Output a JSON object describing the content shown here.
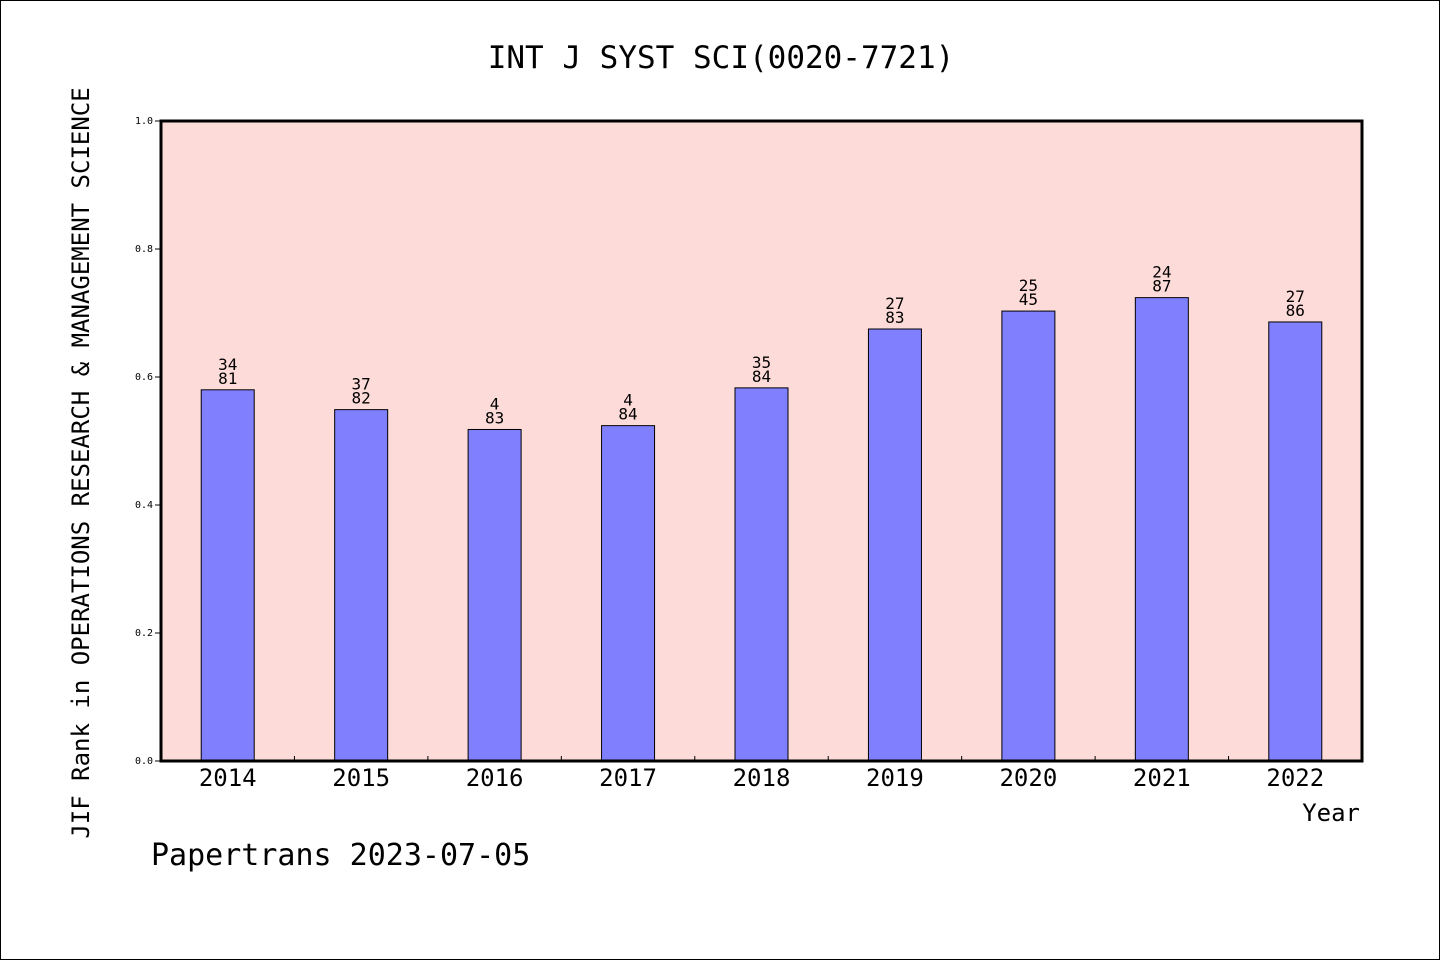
{
  "chart_data": {
    "type": "bar",
    "title": "INT J SYST SCI(0020-7721)",
    "ylabel": "JIF Rank in OPERATIONS RESEARCH & MANAGEMENT SCIENCE",
    "xlabel": "Year",
    "categories": [
      "2014",
      "2015",
      "2016",
      "2017",
      "2018",
      "2019",
      "2020",
      "2021",
      "2022"
    ],
    "values": [
      0.58,
      0.549,
      0.518,
      0.524,
      0.583,
      0.675,
      0.703,
      0.724,
      0.686
    ],
    "bar_labels": [
      [
        "34",
        "81"
      ],
      [
        "37",
        "82"
      ],
      [
        "4",
        "83"
      ],
      [
        "4",
        "84"
      ],
      [
        "35",
        "84"
      ],
      [
        "27",
        "83"
      ],
      [
        "25",
        "45"
      ],
      [
        "24",
        "87"
      ],
      [
        "27",
        "86"
      ]
    ],
    "ylim": [
      0,
      1.0
    ],
    "yticks": [
      "0.0",
      "0.2",
      "0.4",
      "0.6",
      "0.8",
      "1.0"
    ],
    "grid": false,
    "colors": {
      "plot_background": "#fddbd8",
      "bar_fill": "#8080ff",
      "bar_stroke": "#000000"
    }
  },
  "footer": "Papertrans 2023-07-05"
}
